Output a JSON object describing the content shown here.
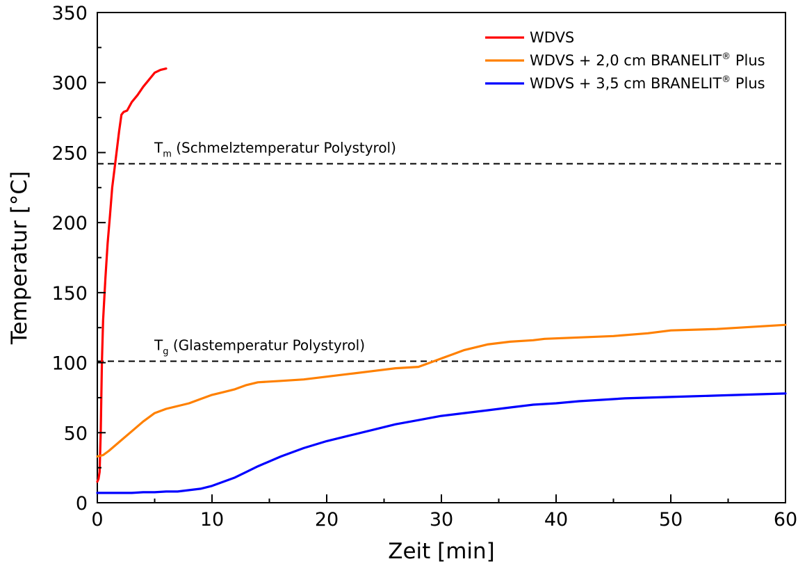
{
  "chart_data": {
    "type": "line",
    "xlabel": "Zeit [min]",
    "ylabel": "Temperatur [°C]",
    "xlim": [
      0,
      60
    ],
    "ylim": [
      0,
      350
    ],
    "x_ticks": [
      0,
      10,
      20,
      30,
      40,
      50,
      60
    ],
    "y_ticks": [
      0,
      50,
      100,
      150,
      200,
      250,
      300,
      350
    ],
    "grid": false,
    "legend_position": "top-right",
    "series": [
      {
        "name": "WDVS",
        "color": "#ff0000",
        "x": [
          0,
          0.1,
          0.2,
          0.3,
          0.4,
          0.5,
          0.7,
          0.9,
          1.1,
          1.3,
          1.6,
          1.9,
          2.1,
          2.3,
          2.6,
          3,
          3.5,
          4,
          4.5,
          5,
          5.5,
          6
        ],
        "y": [
          15,
          17,
          22,
          50,
          100,
          130,
          160,
          185,
          205,
          225,
          245,
          265,
          277,
          279,
          280,
          286,
          291,
          297,
          302,
          307,
          309,
          310
        ]
      },
      {
        "name": "WDVS + 2,0 cm BRANELIT",
        "name_sup": "®",
        "name_suffix": " Plus",
        "color": "#ff8000",
        "x": [
          0,
          0.5,
          1,
          2,
          3,
          4,
          5,
          6,
          7,
          7.5,
          8,
          9,
          10,
          11,
          12,
          13,
          14,
          16,
          18,
          20,
          22,
          24,
          26,
          28,
          29,
          30,
          31,
          32,
          34,
          36,
          38,
          39,
          42,
          45,
          48,
          50,
          54,
          58,
          60
        ],
        "y": [
          33,
          34,
          37,
          44,
          51,
          58,
          64,
          67,
          69,
          70,
          71,
          74,
          77,
          79,
          81,
          84,
          86,
          87,
          88,
          90,
          92,
          94,
          96,
          97,
          100,
          103,
          106,
          109,
          113,
          115,
          116,
          117,
          118,
          119,
          121,
          123,
          124,
          126,
          127
        ]
      },
      {
        "name": "WDVS + 3,5 cm BRANELIT",
        "name_sup": "®",
        "name_suffix": " Plus",
        "color": "#0000ff",
        "x": [
          0,
          2,
          3,
          4,
          5,
          6,
          7,
          8,
          9,
          10,
          11,
          12,
          13,
          14,
          16,
          18,
          20,
          22,
          24,
          26,
          28,
          30,
          32,
          34,
          36,
          38,
          40,
          42,
          44,
          46,
          48,
          50,
          52,
          54,
          56,
          58,
          60
        ],
        "y": [
          7,
          7,
          7,
          7.5,
          7.5,
          8,
          8,
          9,
          10,
          12,
          15,
          18,
          22,
          26,
          33,
          39,
          44,
          48,
          52,
          56,
          59,
          62,
          64,
          66,
          68,
          70,
          71,
          72.5,
          73.5,
          74.5,
          75,
          75.5,
          76,
          76.5,
          77,
          77.5,
          78
        ]
      }
    ],
    "reference_lines": [
      {
        "y": 242,
        "label_main": "T",
        "label_sub": "m",
        "label_rest": " (Schmelztemperatur Polystyrol)"
      },
      {
        "y": 101,
        "label_main": "T",
        "label_sub": "g",
        "label_rest": " (Glastemperatur Polystyrol)"
      }
    ]
  }
}
